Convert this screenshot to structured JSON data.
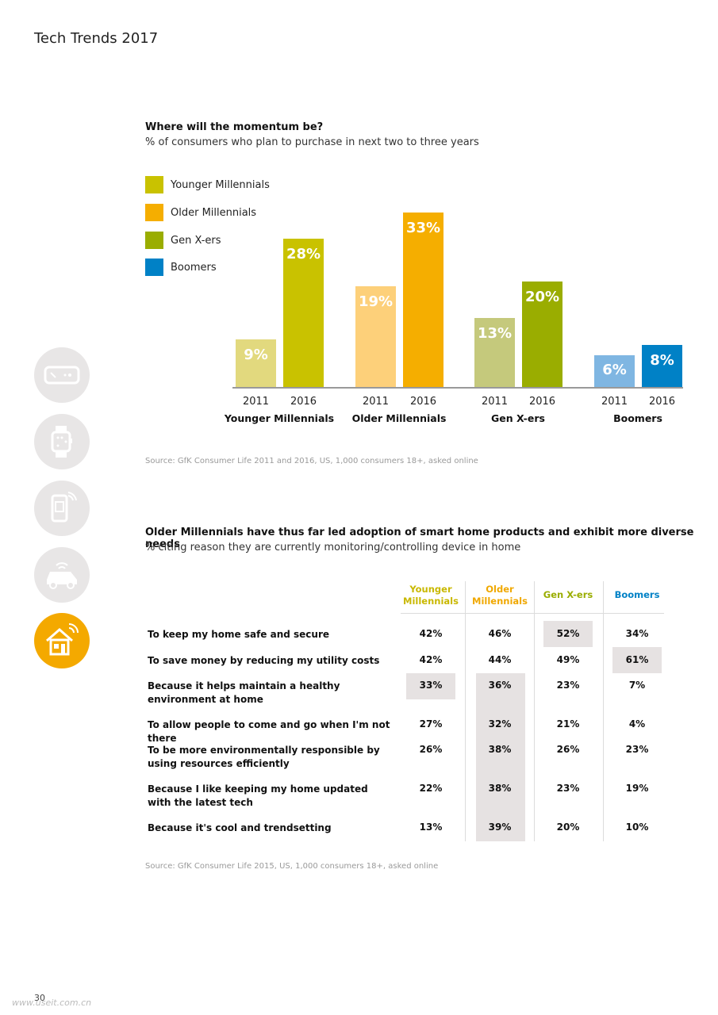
{
  "header": {
    "title": "Tech Trends 2017"
  },
  "chart1": {
    "title": "Where will the momentum be?",
    "subtitle": "% of consumers who plan to purchase in next two to three years",
    "source": "Source: GfK Consumer Life 2011 and 2016, US, 1,000 consumers 18+, asked online"
  },
  "chart_data": [
    {
      "type": "bar",
      "title": "Where will the momentum be?",
      "subtitle": "% of consumers who plan to purchase in next two to three years",
      "legend_position": "top-left",
      "groups": [
        {
          "name": "Younger Millennials",
          "color_2011": "#e2d97e",
          "color_2016": "#c9c200",
          "points": [
            {
              "year": "2011",
              "value": 9,
              "label": "9%"
            },
            {
              "year": "2016",
              "value": 28,
              "label": "28%"
            }
          ]
        },
        {
          "name": "Older Millennials",
          "color_2011": "#fdd07a",
          "color_2016": "#f5ae00",
          "points": [
            {
              "year": "2011",
              "value": 19,
              "label": "19%"
            },
            {
              "year": "2016",
              "value": 33,
              "label": "33%"
            }
          ]
        },
        {
          "name": "Gen X-ers",
          "color_2011": "#c5c97c",
          "color_2016": "#9aad00",
          "points": [
            {
              "year": "2011",
              "value": 13,
              "label": "13%"
            },
            {
              "year": "2016",
              "value": 20,
              "label": "20%"
            }
          ]
        },
        {
          "name": "Boomers",
          "color_2011": "#7fb6e2",
          "color_2016": "#0081c6",
          "points": [
            {
              "year": "2011",
              "value": 6,
              "label": "6%"
            },
            {
              "year": "2016",
              "value": 8,
              "label": "8%"
            }
          ]
        }
      ],
      "legend": [
        {
          "label": "Younger Millennials",
          "color": "#c9c200"
        },
        {
          "label": "Older Millennials",
          "color": "#f5ae00"
        },
        {
          "label": "Gen X-ers",
          "color": "#9aad00"
        },
        {
          "label": "Boomers",
          "color": "#0081c6"
        }
      ],
      "ylim": [
        0,
        33
      ],
      "grid": false
    },
    {
      "type": "table",
      "title": "Older Millennials have thus far led adoption of smart home products and exhibit more diverse needs",
      "subtitle": "% citing reason they are currently monitoring/controlling device in home",
      "columns": [
        {
          "label": "Younger Millennials",
          "lines": [
            "Younger",
            "Millennials"
          ],
          "color": "#c9b800"
        },
        {
          "label": "Older Millennials",
          "lines": [
            "Older",
            "Millennials"
          ],
          "color": "#f0a800"
        },
        {
          "label": "Gen X-ers",
          "lines": [
            "Gen X-ers"
          ],
          "color": "#9aad00"
        },
        {
          "label": "Boomers",
          "lines": [
            "Boomers"
          ],
          "color": "#0081c6"
        }
      ],
      "rows": [
        {
          "label": [
            "To keep my home safe and secure"
          ],
          "values": [
            "42%",
            "46%",
            "52%",
            "34%"
          ],
          "highlight": [
            false,
            false,
            true,
            false
          ]
        },
        {
          "label": [
            "To save money by reducing my utility costs"
          ],
          "values": [
            "42%",
            "44%",
            "49%",
            "61%"
          ],
          "highlight": [
            false,
            false,
            false,
            true
          ]
        },
        {
          "label": [
            "Because it helps maintain a healthy",
            "environment at home"
          ],
          "values": [
            "33%",
            "36%",
            "23%",
            "7%"
          ],
          "highlight": [
            true,
            true,
            false,
            false
          ]
        },
        {
          "label": [
            "To allow people to come and go when I'm not there"
          ],
          "values": [
            "27%",
            "32%",
            "21%",
            "4%"
          ],
          "highlight": [
            false,
            true,
            false,
            false
          ]
        },
        {
          "label": [
            "To be more environmentally responsible by",
            "using resources efficiently"
          ],
          "values": [
            "26%",
            "38%",
            "26%",
            "23%"
          ],
          "highlight": [
            false,
            true,
            false,
            false
          ]
        },
        {
          "label": [
            "Because I like keeping my home updated",
            "with the latest tech"
          ],
          "values": [
            "22%",
            "38%",
            "23%",
            "19%"
          ],
          "highlight": [
            false,
            true,
            false,
            false
          ]
        },
        {
          "label": [
            "Because it's cool and trendsetting"
          ],
          "values": [
            "13%",
            "39%",
            "20%",
            "10%"
          ],
          "highlight": [
            false,
            true,
            false,
            false
          ]
        }
      ],
      "source": "Source: GfK Consumer Life 2015, US, 1,000 consumers 18+, asked online"
    }
  ],
  "sidebar_icons": [
    {
      "name": "vr-headset-icon",
      "active": false
    },
    {
      "name": "smartwatch-icon",
      "active": false
    },
    {
      "name": "smartphone-icon",
      "active": false
    },
    {
      "name": "connected-car-icon",
      "active": false
    },
    {
      "name": "smart-home-icon",
      "active": true
    }
  ],
  "footer": {
    "page_number": "30",
    "watermark": "www.useit.com.cn"
  }
}
